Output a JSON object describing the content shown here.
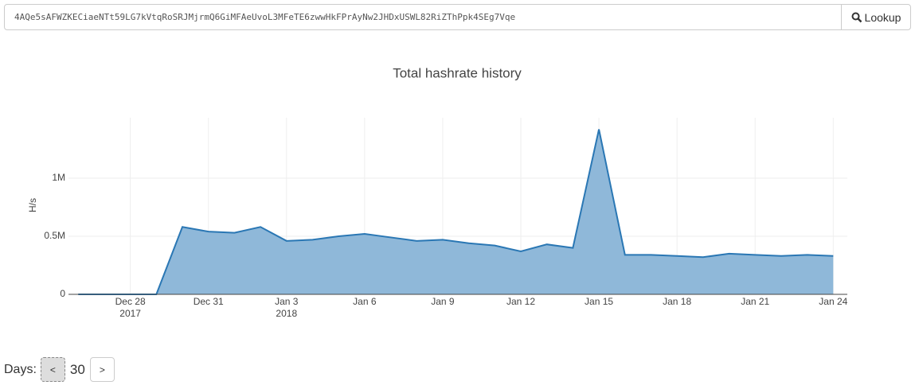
{
  "search": {
    "address": "4AQe5sAFWZKECiaeNTt59LG7kVtqRoSRJMjrmQ6GiMFAeUvoL3MFeTE6zwwHkFPrAyNw2JHDxUSWL82RiZThPpk4SEg7Vqe",
    "button": "Lookup"
  },
  "chart_data": {
    "type": "area",
    "title": "Total hashrate history",
    "y_label": "H/s",
    "x": [
      "2017-12-26",
      "2017-12-27",
      "2017-12-28",
      "2017-12-29",
      "2017-12-30",
      "2017-12-31",
      "2018-01-01",
      "2018-01-02",
      "2018-01-03",
      "2018-01-04",
      "2018-01-05",
      "2018-01-06",
      "2018-01-07",
      "2018-01-08",
      "2018-01-09",
      "2018-01-10",
      "2018-01-11",
      "2018-01-12",
      "2018-01-13",
      "2018-01-14",
      "2018-01-15",
      "2018-01-16",
      "2018-01-17",
      "2018-01-18",
      "2018-01-19",
      "2018-01-20",
      "2018-01-21",
      "2018-01-22",
      "2018-01-23",
      "2018-01-24"
    ],
    "series": [
      {
        "name": "Total hashrate",
        "color": "#2a77b4",
        "fill": "#8fb8d9",
        "values": [
          0,
          0,
          0,
          0,
          580000,
          540000,
          530000,
          580000,
          460000,
          470000,
          500000,
          520000,
          490000,
          460000,
          470000,
          440000,
          420000,
          370000,
          430000,
          400000,
          1420000,
          340000,
          340000,
          330000,
          320000,
          350000,
          340000,
          330000,
          340000,
          330000
        ]
      }
    ],
    "xlim": [
      "2017-12-25T15:00",
      "2018-01-24T13:00"
    ],
    "xticks": [
      {
        "value": "2017-12-28",
        "label": "Dec 28",
        "year": "2017"
      },
      {
        "value": "2017-12-31",
        "label": "Dec 31"
      },
      {
        "value": "2018-01-03",
        "label": "Jan 3",
        "year": "2018"
      },
      {
        "value": "2018-01-06",
        "label": "Jan 6"
      },
      {
        "value": "2018-01-09",
        "label": "Jan 9"
      },
      {
        "value": "2018-01-12",
        "label": "Jan 12"
      },
      {
        "value": "2018-01-15",
        "label": "Jan 15"
      },
      {
        "value": "2018-01-18",
        "label": "Jan 18"
      },
      {
        "value": "2018-01-21",
        "label": "Jan 21"
      },
      {
        "value": "2018-01-24",
        "label": "Jan 24"
      }
    ],
    "ylim": [
      0,
      1520000
    ],
    "yticks": [
      0,
      {
        "value": 500000,
        "label": "0.5M"
      },
      {
        "value": 1000000,
        "label": "1M"
      }
    ],
    "grid": true
  },
  "days": {
    "label": "Days:",
    "prev": "<",
    "value": "30",
    "next": ">"
  }
}
